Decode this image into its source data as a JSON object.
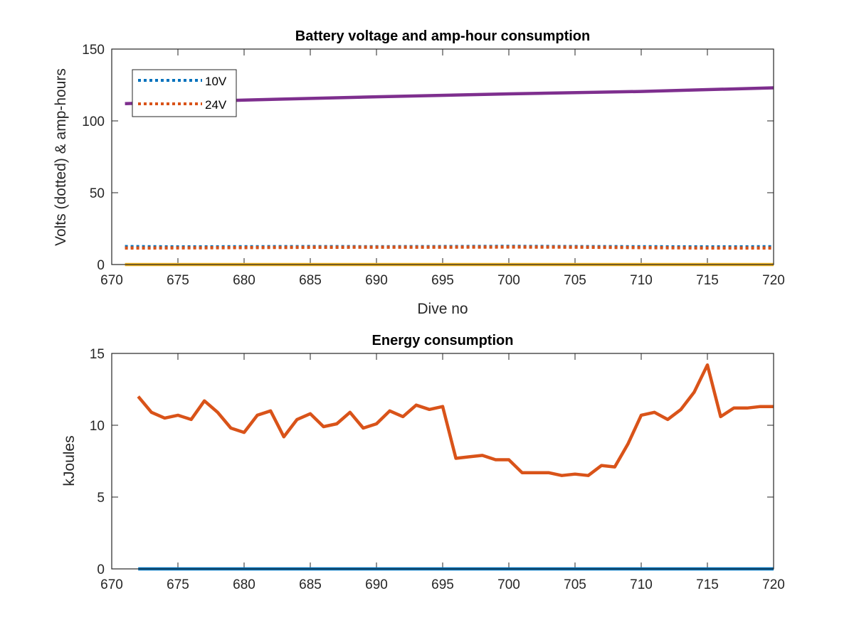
{
  "chart_data": [
    {
      "type": "line",
      "title": "Battery voltage and amp-hour consumption",
      "xlabel": "Dive no",
      "ylabel": "Volts (dotted) & amp-hours",
      "xlim": [
        670,
        720
      ],
      "ylim": [
        0,
        150
      ],
      "xticks": [
        670,
        675,
        680,
        685,
        690,
        695,
        700,
        705,
        710,
        715,
        720
      ],
      "yticks": [
        0,
        50,
        100,
        150
      ],
      "legend": {
        "placement": "top-left",
        "entries": [
          "10V",
          "24V"
        ]
      },
      "grid": false,
      "series": [
        {
          "name": "10V",
          "style": "dotted",
          "color": "#0072BD",
          "x": [
            671,
            675,
            680,
            685,
            690,
            695,
            700,
            705,
            710,
            715,
            720
          ],
          "y": [
            12.5,
            12.3,
            12.4,
            12.5,
            12.4,
            12.5,
            12.6,
            12.5,
            12.4,
            12.3,
            12.4
          ]
        },
        {
          "name": "24V",
          "style": "dotted",
          "color": "#D95319",
          "x": [
            671,
            675,
            680,
            685,
            690,
            695,
            700,
            705,
            710,
            715,
            720
          ],
          "y": [
            11.5,
            11.6,
            11.8,
            12.0,
            12.1,
            12.1,
            12.2,
            12.1,
            11.8,
            11.5,
            11.5
          ]
        },
        {
          "style": "solid",
          "color": "#EDB120",
          "x": [
            671,
            720
          ],
          "y": [
            0,
            0
          ]
        },
        {
          "style": "solid",
          "color": "#7E2F8E",
          "x": [
            671,
            680,
            690,
            700,
            710,
            720
          ],
          "y": [
            112,
            114.5,
            116.8,
            118.8,
            120.5,
            123
          ]
        }
      ]
    },
    {
      "type": "line",
      "title": "Energy consumption",
      "xlabel": "",
      "ylabel": "kJoules",
      "xlim": [
        670,
        720
      ],
      "ylim": [
        0,
        15
      ],
      "xticks": [
        670,
        675,
        680,
        685,
        690,
        695,
        700,
        705,
        710,
        715,
        720
      ],
      "yticks": [
        0,
        5,
        10,
        15
      ],
      "grid": false,
      "series": [
        {
          "style": "solid",
          "color": "#D95319",
          "x": [
            672,
            673,
            674,
            675,
            676,
            677,
            678,
            679,
            680,
            681,
            682,
            683,
            684,
            685,
            686,
            687,
            688,
            689,
            690,
            691,
            692,
            693,
            694,
            695,
            696,
            697,
            698,
            699,
            700,
            701,
            702,
            703,
            704,
            705,
            706,
            707,
            708,
            709,
            710,
            711,
            712,
            713,
            714,
            715,
            716,
            717,
            718,
            719,
            720
          ],
          "y": [
            12.0,
            10.9,
            10.5,
            10.7,
            10.4,
            11.7,
            10.9,
            9.8,
            9.5,
            10.7,
            11.0,
            9.2,
            10.4,
            10.8,
            9.9,
            10.1,
            10.9,
            9.8,
            10.1,
            11.0,
            10.6,
            11.4,
            11.1,
            11.3,
            7.7,
            7.8,
            7.9,
            7.6,
            7.6,
            6.7,
            6.7,
            6.7,
            6.5,
            6.6,
            6.5,
            7.2,
            7.1,
            8.7,
            10.7,
            10.9,
            10.4,
            11.1,
            12.3,
            14.2,
            10.6,
            11.2,
            11.2,
            11.3,
            11.3
          ]
        },
        {
          "style": "solid",
          "color": "#0072BD",
          "x": [
            672,
            720
          ],
          "y": [
            0,
            0
          ]
        }
      ]
    }
  ]
}
